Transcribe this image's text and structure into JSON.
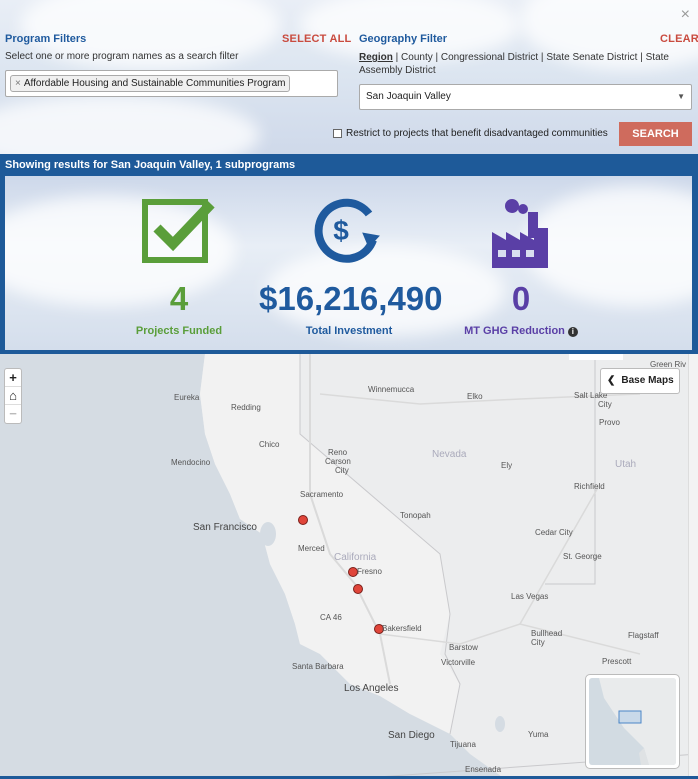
{
  "filters": {
    "close_glyph": "×",
    "program": {
      "title": "Program Filters",
      "select_all": "SELECT ALL",
      "help": "Select one or more program names as a search filter",
      "chip_remove": "×",
      "chip": "Affordable Housing and Sustainable Communities Program"
    },
    "geography": {
      "title": "Geography Filter",
      "clear": "CLEAR",
      "options": [
        "Region",
        "County",
        "Congressional District",
        "State Senate District",
        "State Assembly District"
      ],
      "active_option": "Region",
      "separator": " | ",
      "selected": "San Joaquin Valley"
    },
    "restrict_label": "Restrict to projects that benefit disadvantaged communities",
    "restrict_checked": false,
    "search_label": "SEARCH"
  },
  "results": {
    "text": "Showing results for San Joaquin Valley, 1 subprograms",
    "stats": [
      {
        "value": "4",
        "label": "Projects Funded",
        "icon": "checkbox-icon",
        "color": "#5a9e3a"
      },
      {
        "value": "$16,216,490",
        "label": "Total Investment",
        "icon": "dollar-cycle-icon",
        "color": "#1f5a9e"
      },
      {
        "value": "0",
        "label": "MT GHG Reduction",
        "icon": "factory-icon",
        "color": "#5a3fa6"
      }
    ]
  },
  "map": {
    "zoom_in": "+",
    "home": "⌂",
    "zoom_out": "−",
    "base_maps": "Base Maps",
    "labels": {
      "green_river": "Green Riv",
      "winnemucca": "Winnemucca",
      "elko": "Elko",
      "salt_lake": "Salt Lake",
      "city1": "City",
      "eureka": "Eureka",
      "redding": "Redding",
      "provo": "Provo",
      "chico": "Chico",
      "reno": "Reno",
      "carson": "Carson",
      "city2": "City",
      "nevada": "Nevada",
      "ely": "Ely",
      "utah": "Utah",
      "mendocino": "Mendocino",
      "richfield": "Richfield",
      "sacramento": "Sacramento",
      "tonopah": "Tonopah",
      "san_francisco": "San Francisco",
      "cedar_city": "Cedar City",
      "merced": "Merced",
      "california": "California",
      "st_george": "St. George",
      "fresno": "Fresno",
      "las_vegas": "Las Vegas",
      "ca46": "CA 46",
      "bakersfield": "Bakersfield",
      "bullhead": "Bullhead",
      "city3": "City",
      "flagstaff": "Flagstaff",
      "barstow": "Barstow",
      "santa_barbara": "Santa Barbara",
      "victorville": "Victorville",
      "prescott": "Prescott",
      "los_angeles": "Los Angeles",
      "san_diego": "San Diego",
      "yuma": "Yuma",
      "tijuana": "Tijuana",
      "ensenada": "Ensenada"
    }
  }
}
